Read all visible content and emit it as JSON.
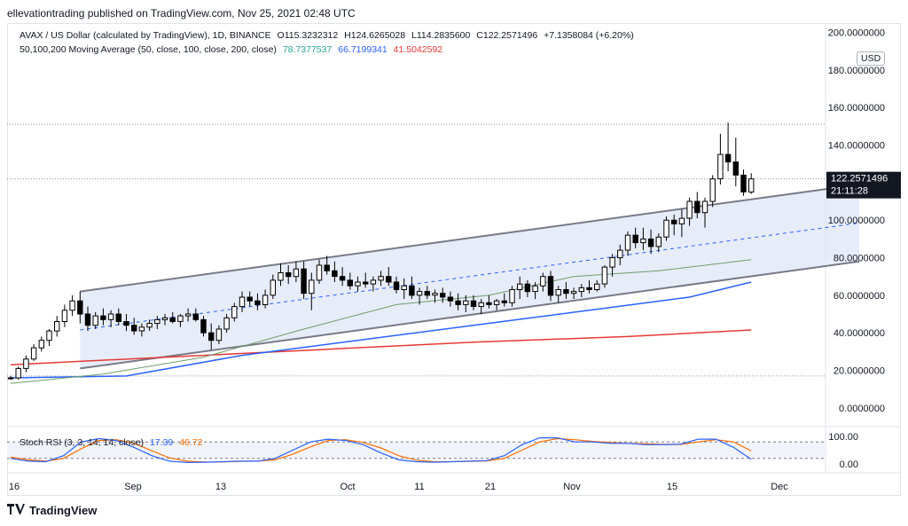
{
  "header": {
    "publisher_line": "ellevationtrading published on TradingView.com, Nov 25, 2021 02:48 UTC"
  },
  "legend": {
    "symbol_line": "AVAX / US Dollar (calculated by TradingView), 1D, BINANCE",
    "ohlc": {
      "open": "O115.3232312",
      "high": "H124.6265028",
      "low": "L114.2835600",
      "close": "C122.2571496",
      "change": "+7.1358084 (+6.20%)"
    },
    "ma_line": "50,100,200 Moving Average (50, close, 100, close, 200, close)",
    "ma_values": [
      "78.7377537",
      "66.7199341",
      "41.5042592"
    ],
    "ma_colors": [
      "#26a69a",
      "#2962ff",
      "#e53935"
    ],
    "currency_button": "USD"
  },
  "price_axis": {
    "ticks": [
      "200.0000000",
      "180.0000000",
      "160.0000000",
      "140.0000000",
      "100.0000000",
      "80.0000000",
      "60.0000000",
      "40.0000000",
      "20.0000000",
      "0.0000000"
    ],
    "last_price": "122.2571496",
    "countdown": "21:11:28"
  },
  "time_axis": {
    "ticks": [
      "16",
      "Sep",
      "13",
      "Oct",
      "11",
      "21",
      "Nov",
      "15",
      "Dec"
    ]
  },
  "stoch": {
    "label": "Stoch RSI (3, 3, 14, 14, close)",
    "k_value": "17.39",
    "d_value": "46.72",
    "ticks": [
      "100.00",
      "0.00"
    ],
    "k_color": "#2962ff",
    "d_color": "#ff6d00"
  },
  "footer": {
    "brand": "TradingView"
  },
  "colors": {
    "up": "#ffffff",
    "down": "#000000",
    "channel_fill": "#dfe6f7",
    "channel_line": "#787b86",
    "midline": "#2962ff"
  },
  "chart_data": {
    "type": "candlestick",
    "title": "AVAX / US Dollar",
    "ylim": [
      -10,
      205
    ],
    "candles_ohlc": [
      [
        16,
        17,
        15,
        16
      ],
      [
        16,
        22,
        15,
        21
      ],
      [
        21,
        28,
        19,
        26
      ],
      [
        26,
        34,
        25,
        32
      ],
      [
        32,
        38,
        30,
        36
      ],
      [
        36,
        42,
        33,
        41
      ],
      [
        41,
        49,
        38,
        46
      ],
      [
        46,
        55,
        43,
        52
      ],
      [
        52,
        60,
        49,
        57
      ],
      [
        57,
        62,
        45,
        50
      ],
      [
        50,
        54,
        41,
        44
      ],
      [
        44,
        51,
        42,
        49
      ],
      [
        49,
        53,
        44,
        47
      ],
      [
        47,
        52,
        43,
        50
      ],
      [
        50,
        53,
        44,
        46
      ],
      [
        46,
        50,
        41,
        44
      ],
      [
        44,
        48,
        39,
        41
      ],
      [
        41,
        45,
        38,
        43
      ],
      [
        43,
        47,
        41,
        45
      ],
      [
        45,
        49,
        42,
        47
      ],
      [
        47,
        50,
        44,
        48
      ],
      [
        48,
        51,
        45,
        46
      ],
      [
        46,
        50,
        43,
        49
      ],
      [
        49,
        53,
        46,
        50
      ],
      [
        50,
        53,
        46,
        47
      ],
      [
        47,
        49,
        38,
        40
      ],
      [
        40,
        45,
        31,
        36
      ],
      [
        36,
        44,
        34,
        42
      ],
      [
        42,
        50,
        40,
        48
      ],
      [
        48,
        56,
        46,
        54
      ],
      [
        54,
        62,
        51,
        59
      ],
      [
        59,
        62,
        54,
        57
      ],
      [
        57,
        61,
        52,
        55
      ],
      [
        55,
        63,
        53,
        60
      ],
      [
        60,
        71,
        58,
        68
      ],
      [
        68,
        77,
        65,
        72
      ],
      [
        72,
        76,
        66,
        70
      ],
      [
        70,
        78,
        67,
        74
      ],
      [
        74,
        78,
        58,
        61
      ],
      [
        61,
        72,
        52,
        68
      ],
      [
        68,
        79,
        66,
        76
      ],
      [
        76,
        81,
        71,
        73
      ],
      [
        73,
        78,
        67,
        70
      ],
      [
        70,
        75,
        65,
        68
      ],
      [
        68,
        72,
        63,
        65
      ],
      [
        65,
        70,
        62,
        67
      ],
      [
        67,
        72,
        64,
        66
      ],
      [
        66,
        70,
        62,
        68
      ],
      [
        68,
        73,
        65,
        70
      ],
      [
        70,
        75,
        65,
        67
      ],
      [
        67,
        70,
        61,
        63
      ],
      [
        63,
        69,
        58,
        65
      ],
      [
        65,
        70,
        58,
        60
      ],
      [
        60,
        64,
        55,
        62
      ],
      [
        62,
        65,
        58,
        60
      ],
      [
        60,
        63,
        56,
        61
      ],
      [
        61,
        64,
        56,
        59
      ],
      [
        59,
        62,
        54,
        57
      ],
      [
        57,
        61,
        52,
        55
      ],
      [
        55,
        60,
        51,
        57
      ],
      [
        57,
        60,
        52,
        54
      ],
      [
        54,
        58,
        50,
        56
      ],
      [
        56,
        60,
        53,
        55
      ],
      [
        55,
        58,
        52,
        57
      ],
      [
        57,
        61,
        54,
        56
      ],
      [
        56,
        65,
        54,
        63
      ],
      [
        63,
        70,
        58,
        66
      ],
      [
        66,
        68,
        59,
        62
      ],
      [
        62,
        67,
        58,
        65
      ],
      [
        65,
        72,
        62,
        70
      ],
      [
        70,
        73,
        57,
        60
      ],
      [
        60,
        65,
        56,
        63
      ],
      [
        63,
        67,
        58,
        61
      ],
      [
        61,
        64,
        58,
        62
      ],
      [
        62,
        66,
        59,
        64
      ],
      [
        64,
        68,
        61,
        63
      ],
      [
        63,
        68,
        62,
        66
      ],
      [
        66,
        76,
        64,
        75
      ],
      [
        75,
        82,
        70,
        80
      ],
      [
        80,
        87,
        76,
        84
      ],
      [
        84,
        94,
        81,
        92
      ],
      [
        92,
        96,
        85,
        88
      ],
      [
        88,
        96,
        84,
        90
      ],
      [
        90,
        95,
        82,
        86
      ],
      [
        86,
        93,
        83,
        91
      ],
      [
        91,
        102,
        89,
        100
      ],
      [
        100,
        103,
        92,
        98
      ],
      [
        98,
        106,
        91,
        101
      ],
      [
        101,
        112,
        97,
        110
      ],
      [
        110,
        115,
        101,
        104
      ],
      [
        104,
        112,
        96,
        110
      ],
      [
        110,
        124,
        107,
        122
      ],
      [
        122,
        146,
        119,
        135
      ],
      [
        135,
        152,
        126,
        131
      ],
      [
        131,
        144,
        118,
        124
      ],
      [
        124,
        127,
        113,
        115
      ],
      [
        115,
        125,
        114,
        122
      ]
    ],
    "ma50": [
      [
        0,
        13
      ],
      [
        12,
        18
      ],
      [
        25,
        27
      ],
      [
        38,
        42
      ],
      [
        50,
        55
      ],
      [
        62,
        60
      ],
      [
        73,
        70
      ],
      [
        84,
        73
      ],
      [
        96,
        79
      ]
    ],
    "ma100": [
      [
        0,
        16
      ],
      [
        15,
        17
      ],
      [
        30,
        28
      ],
      [
        45,
        36
      ],
      [
        60,
        44
      ],
      [
        75,
        52
      ],
      [
        88,
        59
      ],
      [
        96,
        67
      ]
    ],
    "ma200": [
      [
        0,
        23
      ],
      [
        20,
        27
      ],
      [
        40,
        31
      ],
      [
        60,
        35
      ],
      [
        80,
        38
      ],
      [
        96,
        41.5
      ]
    ],
    "channel": {
      "upper": [
        [
          9,
          62
        ],
        [
          110,
          119
        ]
      ],
      "lower": [
        [
          9,
          21
        ],
        [
          110,
          78
        ]
      ],
      "mid": [
        [
          9,
          41.5
        ],
        [
          110,
          98.5
        ]
      ]
    },
    "high_marker": 151,
    "low_marker": 17,
    "stoch_k": [
      20,
      10,
      8,
      30,
      80,
      92,
      85,
      60,
      30,
      10,
      5,
      6,
      8,
      10,
      10,
      20,
      50,
      80,
      90,
      85,
      70,
      40,
      15,
      8,
      6,
      8,
      10,
      12,
      30,
      70,
      95,
      95,
      80,
      80,
      75,
      75,
      70,
      70,
      72,
      90,
      90,
      60,
      17
    ],
    "stoch_d": [
      25,
      15,
      10,
      20,
      55,
      85,
      88,
      75,
      48,
      22,
      10,
      7,
      7,
      9,
      10,
      15,
      35,
      62,
      85,
      88,
      78,
      58,
      30,
      14,
      8,
      8,
      9,
      11,
      20,
      50,
      80,
      92,
      88,
      82,
      78,
      75,
      73,
      71,
      71,
      80,
      88,
      80,
      47
    ]
  }
}
